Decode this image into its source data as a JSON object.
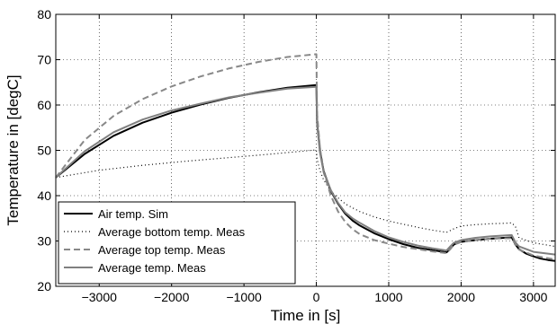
{
  "chart_data": {
    "type": "line",
    "xlabel": "Time in [s]",
    "ylabel": "Temperature in [degC]",
    "xlim": [
      -3600,
      3300
    ],
    "ylim": [
      20,
      80
    ],
    "xticks": [
      -3000,
      -2000,
      -1000,
      0,
      1000,
      2000,
      3000
    ],
    "xtick_labels": [
      "−3000",
      "−2000",
      "−1000",
      "0",
      "1000",
      "2000",
      "3000"
    ],
    "yticks": [
      20,
      30,
      40,
      50,
      60,
      70,
      80
    ],
    "ytick_labels": [
      "20",
      "30",
      "40",
      "50",
      "60",
      "70",
      "80"
    ],
    "grid": true,
    "legend_position": "bottom-left",
    "series": [
      {
        "name": "Air temp. Sim",
        "color": "#000000",
        "style": "solid",
        "x": [
          -3600,
          -3200,
          -2800,
          -2400,
          -2000,
          -1600,
          -1200,
          -800,
          -400,
          0,
          10,
          50,
          100,
          200,
          300,
          400,
          500,
          600,
          800,
          1000,
          1200,
          1400,
          1600,
          1800,
          1850,
          1900,
          2000,
          2200,
          2400,
          2600,
          2700,
          2750,
          2800,
          2900,
          3000,
          3100,
          3200,
          3300
        ],
        "y": [
          44,
          49.2,
          53.2,
          56.1,
          58.3,
          60.1,
          61.6,
          62.8,
          63.8,
          64.4,
          56,
          50,
          45.5,
          41,
          38.2,
          36,
          34.5,
          33.4,
          31.7,
          30.4,
          29.3,
          28.5,
          28.0,
          27.5,
          28.3,
          29.2,
          29.8,
          30.2,
          30.5,
          30.7,
          30.8,
          29.2,
          28.2,
          27.2,
          26.6,
          26.1,
          25.8,
          25.6
        ]
      },
      {
        "name": "Average bottom temp. Meas",
        "color": "#000000",
        "style": "dotted",
        "x": [
          -3600,
          -3000,
          -2400,
          -1800,
          -1200,
          -600,
          0,
          10,
          50,
          100,
          200,
          300,
          400,
          500,
          600,
          800,
          1000,
          1200,
          1400,
          1600,
          1800,
          1900,
          2000,
          2200,
          2400,
          2600,
          2700,
          2750,
          2800,
          3000,
          3300
        ],
        "y": [
          44,
          45.6,
          46.7,
          47.6,
          48.4,
          49.2,
          50.1,
          48,
          45.5,
          43.5,
          41,
          39.5,
          38.2,
          37.3,
          36.5,
          35.3,
          34.4,
          33.7,
          33.0,
          32.4,
          31.9,
          32.7,
          33.3,
          33.6,
          33.8,
          33.9,
          34.0,
          33.2,
          30.7,
          29.6,
          28.8
        ]
      },
      {
        "name": "Average top temp. Meas",
        "color": "#888888",
        "style": "dashed",
        "x": [
          -3600,
          -3200,
          -2800,
          -2400,
          -2000,
          -1600,
          -1200,
          -800,
          -400,
          0,
          10,
          50,
          100,
          200,
          300,
          400,
          500,
          600,
          800,
          1000,
          1200,
          1400,
          1600,
          1800,
          1850,
          1900,
          2000,
          2200,
          2400,
          2600,
          2700,
          2750,
          2800,
          3000,
          3300
        ],
        "y": [
          44,
          52.3,
          57.6,
          61.3,
          64.1,
          66.3,
          68.1,
          69.5,
          70.6,
          71.2,
          58,
          50.5,
          45.2,
          40,
          36.5,
          34.2,
          32.6,
          31.5,
          30.2,
          29.4,
          28.7,
          28.2,
          27.7,
          27.3,
          28.2,
          29.2,
          29.8,
          30.2,
          30.5,
          30.6,
          30.6,
          29.3,
          28.1,
          26.8,
          25.9
        ]
      },
      {
        "name": "Average temp. Meas",
        "color": "#808080",
        "style": "solid",
        "x": [
          -3600,
          -3200,
          -2800,
          -2400,
          -2000,
          -1600,
          -1200,
          -800,
          -400,
          0,
          10,
          50,
          100,
          200,
          300,
          400,
          500,
          600,
          800,
          1000,
          1200,
          1400,
          1600,
          1800,
          1850,
          1900,
          2000,
          2200,
          2400,
          2600,
          2700,
          2750,
          2800,
          3000,
          3300
        ],
        "y": [
          44,
          49.8,
          54.0,
          56.8,
          58.8,
          60.3,
          61.7,
          62.7,
          63.6,
          64.0,
          55.5,
          49.5,
          45.3,
          41.2,
          38.4,
          36.3,
          35.0,
          34.0,
          32.2,
          30.8,
          29.8,
          29.0,
          28.4,
          27.9,
          28.8,
          29.6,
          30.2,
          30.7,
          31.0,
          31.2,
          31.3,
          29.7,
          28.8,
          27.6,
          27.0
        ]
      }
    ]
  }
}
